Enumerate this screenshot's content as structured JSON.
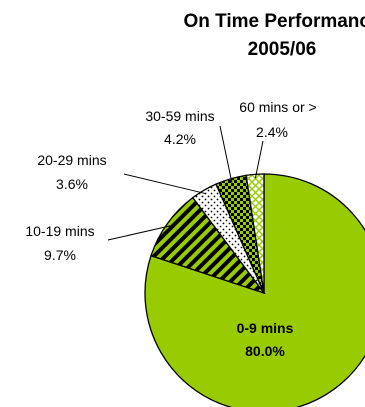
{
  "chart_data": {
    "type": "pie",
    "title": [
      "On Time Performance",
      "2005/06"
    ],
    "slices": [
      {
        "label": "0-9 mins",
        "value": 80.0,
        "display": "80.0%",
        "fill": "#99cc00",
        "pattern": "solid"
      },
      {
        "label": "10-19 mins",
        "value": 9.7,
        "display": "9.7%",
        "fill": "#99cc00",
        "pattern": "diagonal-stripes"
      },
      {
        "label": "20-29 mins",
        "value": 3.6,
        "display": "3.6%",
        "fill": "#ffffff",
        "pattern": "dots"
      },
      {
        "label": "30-59 mins",
        "value": 4.2,
        "display": "4.2%",
        "fill": "#99cc00",
        "pattern": "checker"
      },
      {
        "label": "60 mins or >",
        "value": 2.4,
        "display": "2.4%",
        "fill": "#ffffff",
        "pattern": "crosshatch"
      }
    ],
    "start": "12 o'clock",
    "direction": "clockwise",
    "legend": "none",
    "colors": {
      "accent": "#99cc00",
      "outline": "#000000"
    }
  }
}
